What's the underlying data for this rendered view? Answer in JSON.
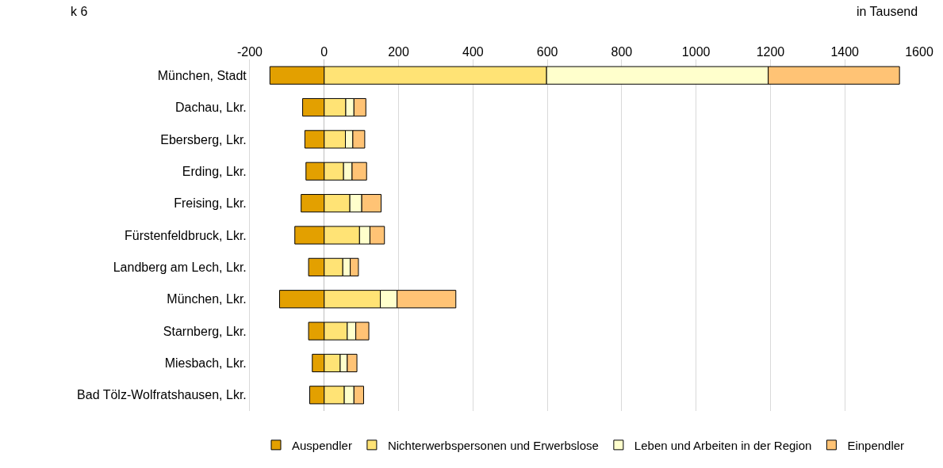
{
  "chart_data": {
    "type": "bar",
    "orientation": "horizontal",
    "stacked": true,
    "annotations": [
      "k 6",
      "in Tausend"
    ],
    "categories": [
      "München, Stadt",
      "Dachau, Lkr.",
      "Ebersberg, Lkr.",
      "Erding, Lkr.",
      "Freising, Lkr.",
      "Fürstenfeldbruck, Lkr.",
      "Landberg am Lech, Lkr.",
      "München, Lkr.",
      "Starnberg, Lkr.",
      "Miesbach, Lkr.",
      "Bad Tölz-Wolfratshausen, Lkr."
    ],
    "series": [
      {
        "name": "Auspendler",
        "color": "#e3a000",
        "values": [
          -146,
          -58,
          -52,
          -49,
          -62,
          -79,
          -42,
          -120,
          -42,
          -32,
          -39
        ]
      },
      {
        "name": "Nichterwerbspersonen und Erwerbslose",
        "color": "#ffe375",
        "values": [
          598,
          58,
          57,
          52,
          69,
          95,
          50,
          151,
          62,
          43,
          54
        ]
      },
      {
        "name": "Leben und Arbeiten in der Region",
        "color": "#ffffcc",
        "values": [
          596,
          22,
          20,
          23,
          32,
          28,
          20,
          45,
          23,
          19,
          26
        ]
      },
      {
        "name": "Einpendler",
        "color": "#ffc375",
        "values": [
          353,
          32,
          32,
          39,
          52,
          39,
          22,
          158,
          35,
          26,
          26
        ]
      }
    ],
    "xlim": [
      -200,
      1600
    ],
    "xticks": [
      -200,
      0,
      200,
      400,
      600,
      800,
      1000,
      1200,
      1400,
      1600
    ],
    "grid": "x",
    "legend": "bottom"
  }
}
